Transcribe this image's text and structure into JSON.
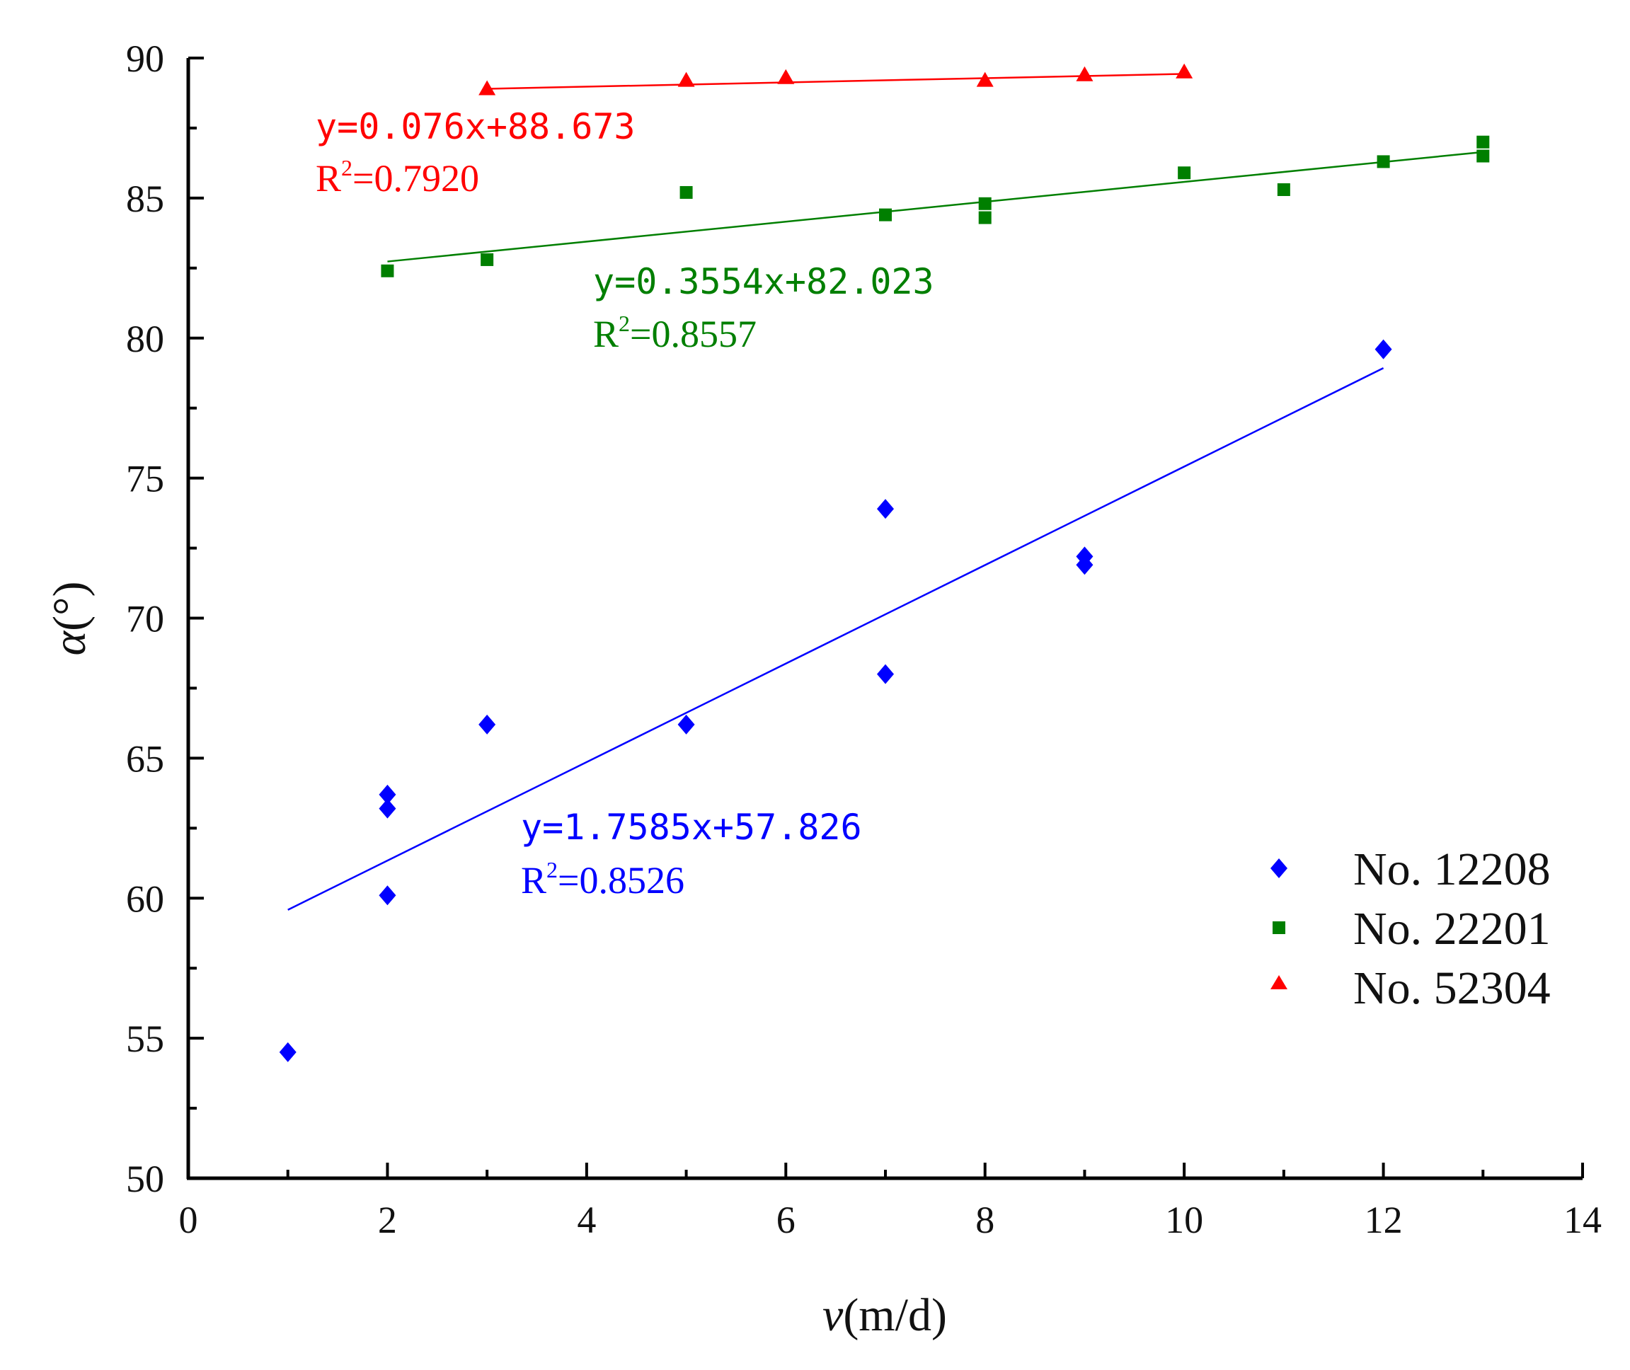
{
  "chart_data": {
    "type": "scatter",
    "xlabel": {
      "var": "v",
      "unit": "(m/d)"
    },
    "ylabel": {
      "var": "α",
      "unit": "(°)"
    },
    "xlim": [
      0,
      14
    ],
    "ylim": [
      50,
      90
    ],
    "x_ticks": [
      0,
      2,
      4,
      6,
      8,
      10,
      12,
      14
    ],
    "y_ticks": [
      50,
      55,
      60,
      65,
      70,
      75,
      80,
      85,
      90
    ],
    "grid": false,
    "legend_position": "bottom-right",
    "series": [
      {
        "name": "No. 12208",
        "color": "#0000ff",
        "marker": "diamond",
        "points": [
          [
            1,
            54.5
          ],
          [
            2,
            60.1
          ],
          [
            2,
            63.2
          ],
          [
            2,
            63.7
          ],
          [
            3,
            66.2
          ],
          [
            5,
            66.2
          ],
          [
            7,
            68.0
          ],
          [
            7,
            73.9
          ],
          [
            9,
            71.9
          ],
          [
            9,
            72.2
          ],
          [
            12,
            79.6
          ]
        ],
        "fit": {
          "slope": 1.7585,
          "intercept": 57.826,
          "x_range": [
            1,
            12
          ]
        },
        "equation": "y=1.7585x+57.826",
        "r2_label": "R",
        "r2_sup": "2",
        "r2_value": "=0.8526"
      },
      {
        "name": "No. 22201",
        "color": "#007f00",
        "marker": "square",
        "points": [
          [
            2,
            82.4
          ],
          [
            3,
            82.8
          ],
          [
            5,
            85.2
          ],
          [
            7,
            84.4
          ],
          [
            8,
            84.3
          ],
          [
            8,
            84.8
          ],
          [
            10,
            85.9
          ],
          [
            11,
            85.3
          ],
          [
            12,
            86.3
          ],
          [
            13,
            86.5
          ],
          [
            13,
            87.0
          ]
        ],
        "fit": {
          "slope": 0.3554,
          "intercept": 82.023,
          "x_range": [
            2,
            13
          ]
        },
        "equation": "y=0.3554x+82.023",
        "r2_label": "R",
        "r2_sup": "2",
        "r2_value": "=0.8557"
      },
      {
        "name": "No. 52304",
        "color": "#ff0000",
        "marker": "triangle",
        "points": [
          [
            3,
            88.9
          ],
          [
            5,
            89.2
          ],
          [
            6,
            89.3
          ],
          [
            8,
            89.2
          ],
          [
            9,
            89.4
          ],
          [
            10,
            89.5
          ]
        ],
        "fit": {
          "slope": 0.076,
          "intercept": 88.673,
          "x_range": [
            3,
            10
          ]
        },
        "equation": "y=0.076x+88.673",
        "r2_label": "R",
        "r2_sup": "2",
        "r2_value": "=0.7920"
      }
    ]
  }
}
